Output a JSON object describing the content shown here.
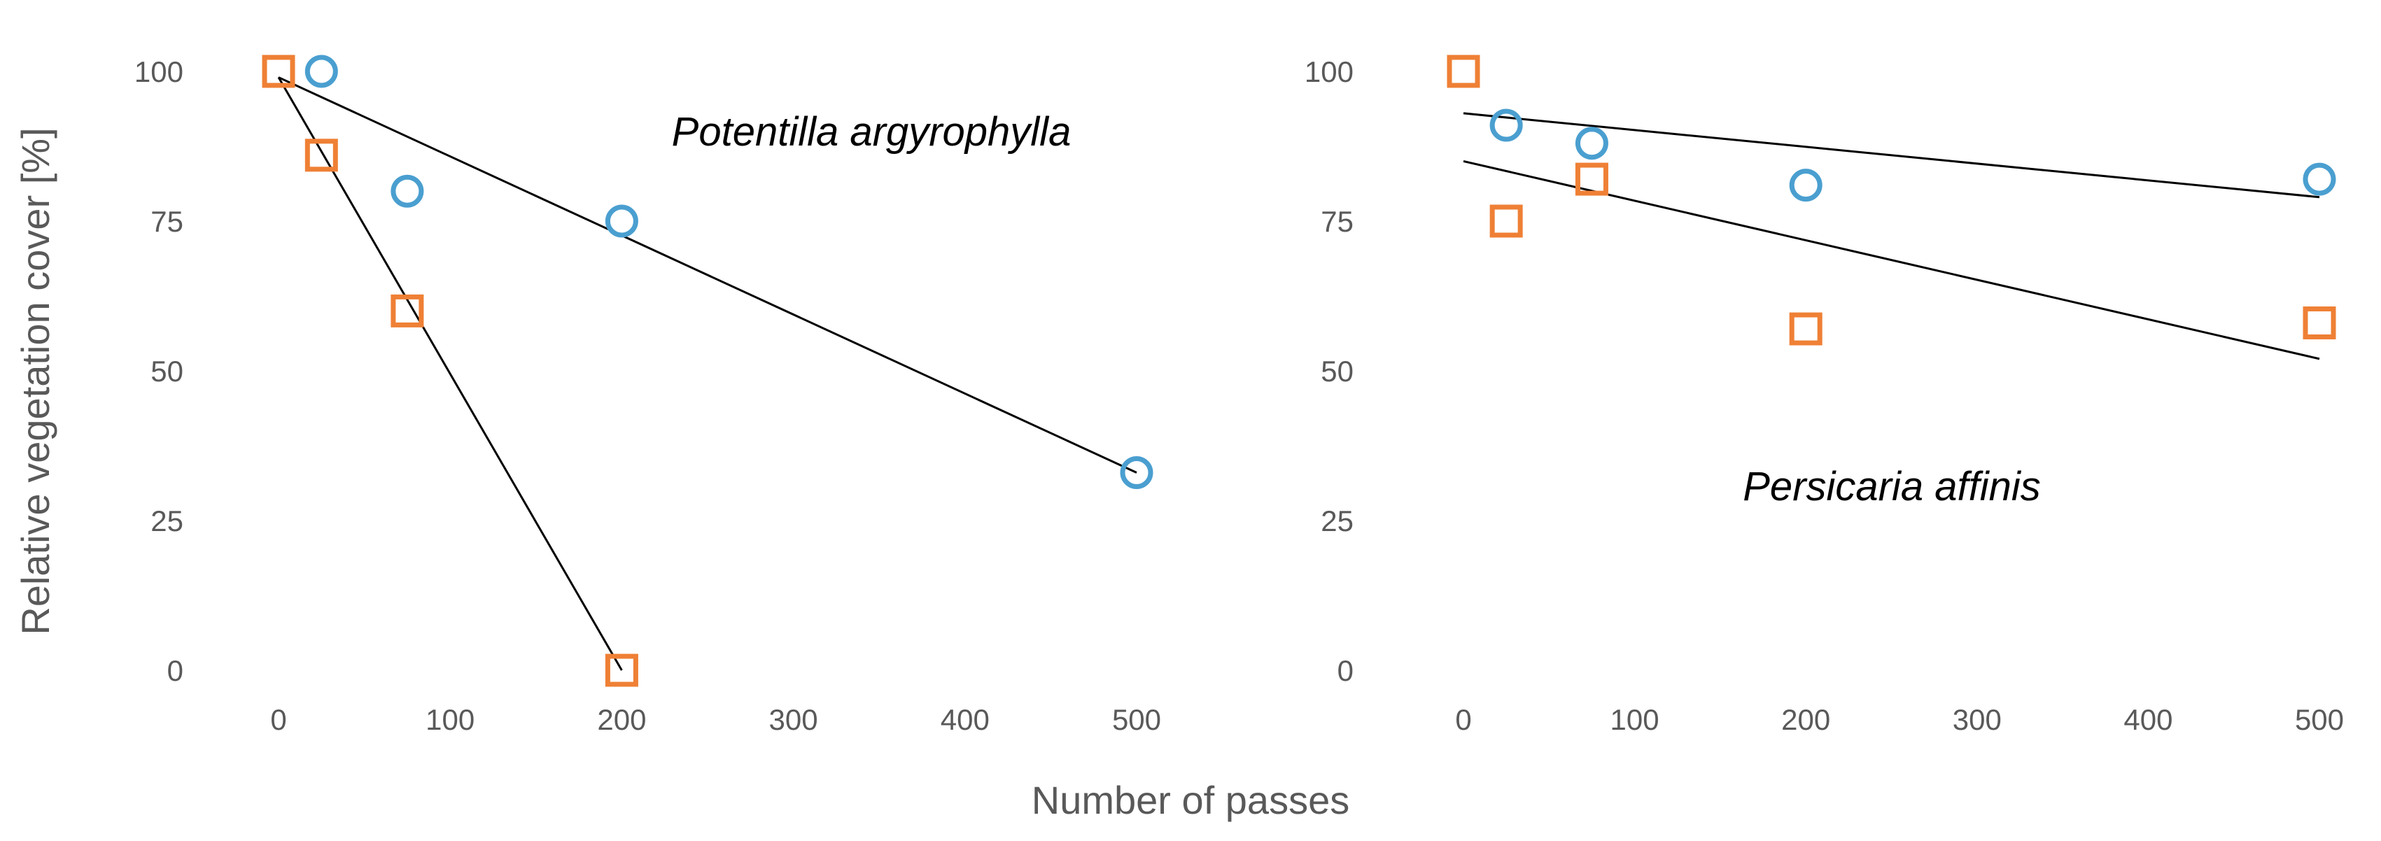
{
  "figure": {
    "xlabel": "Number of passes",
    "ylabel": "Relative vegetation cover [%]"
  },
  "colors": {
    "circle_series": "#4A9FD0",
    "square_series": "#EF8035",
    "trendline": "#000000",
    "tick_text": "#595959"
  },
  "chart_data": [
    {
      "type": "scatter",
      "title": "Potentilla argyrophylla",
      "xlabel": "Number of passes",
      "ylabel": "Relative vegetation cover [%]",
      "xlim": [
        0,
        500
      ],
      "ylim": [
        0,
        100
      ],
      "xticks": [
        "0",
        "100",
        "200",
        "300",
        "400",
        "500"
      ],
      "yticks": [
        "0",
        "25",
        "50",
        "75",
        "100"
      ],
      "series": [
        {
          "name": "circles",
          "marker": "circle",
          "points": [
            [
              25,
              100
            ],
            [
              75,
              80
            ],
            [
              200,
              75
            ],
            [
              500,
              33
            ]
          ],
          "trendline": [
            [
              0,
              99
            ],
            [
              500,
              33
            ]
          ]
        },
        {
          "name": "squares",
          "marker": "square",
          "points": [
            [
              0,
              100
            ],
            [
              25,
              86
            ],
            [
              75,
              60
            ],
            [
              200,
              0
            ]
          ],
          "trendline": [
            [
              0,
              99
            ],
            [
              200,
              0
            ]
          ]
        }
      ]
    },
    {
      "type": "scatter",
      "title": "Persicaria affinis",
      "xlabel": "Number of passes",
      "ylabel": "Relative vegetation cover [%]",
      "xlim": [
        0,
        500
      ],
      "ylim": [
        0,
        100
      ],
      "xticks": [
        "0",
        "100",
        "200",
        "300",
        "400",
        "500"
      ],
      "yticks": [
        "0",
        "25",
        "50",
        "75",
        "100"
      ],
      "series": [
        {
          "name": "circles",
          "marker": "circle",
          "points": [
            [
              25,
              91
            ],
            [
              75,
              88
            ],
            [
              200,
              81
            ],
            [
              500,
              82
            ]
          ],
          "trendline": [
            [
              0,
              93
            ],
            [
              500,
              79
            ]
          ]
        },
        {
          "name": "squares",
          "marker": "square",
          "points": [
            [
              0,
              100
            ],
            [
              25,
              75
            ],
            [
              75,
              82
            ],
            [
              200,
              57
            ],
            [
              500,
              58
            ]
          ],
          "trendline": [
            [
              0,
              85
            ],
            [
              500,
              52
            ]
          ]
        }
      ]
    }
  ]
}
